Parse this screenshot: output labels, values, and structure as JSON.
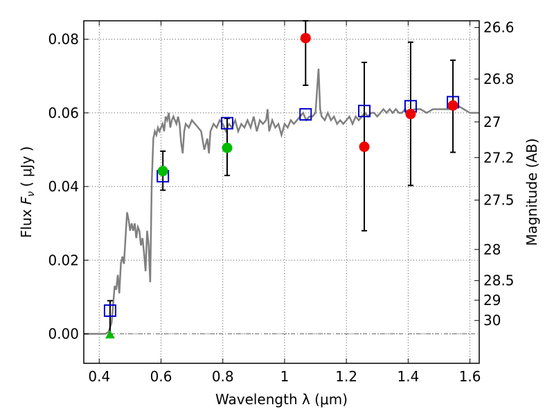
{
  "chart_data": {
    "type": "scatter",
    "xlabel": "Wavelength  λ (μm)",
    "ylabel": "Flux  Fν  ( μJy )",
    "ylabel_parts": {
      "prefix": "Flux  ",
      "symbol": "F",
      "subscript": "ν",
      "suffix": "  ( μJy )"
    },
    "y2label": "Magnitude (AB)",
    "xlim": [
      0.35,
      1.63
    ],
    "ylim": [
      -0.008,
      0.085
    ],
    "grid": true,
    "x_ticks": [
      {
        "value": 0.4,
        "label": "0.4"
      },
      {
        "value": 0.6,
        "label": "0.6"
      },
      {
        "value": 0.8,
        "label": "0.8"
      },
      {
        "value": 1.0,
        "label": "1"
      },
      {
        "value": 1.2,
        "label": "1.2"
      },
      {
        "value": 1.4,
        "label": "1.4"
      },
      {
        "value": 1.6,
        "label": "1.6"
      }
    ],
    "y_ticks": [
      {
        "value": 0.0,
        "label": "0.00"
      },
      {
        "value": 0.02,
        "label": "0.02"
      },
      {
        "value": 0.04,
        "label": "0.04"
      },
      {
        "value": 0.06,
        "label": "0.06"
      },
      {
        "value": 0.08,
        "label": "0.08"
      }
    ],
    "magnitude_ticks": [
      {
        "value": 26.6,
        "label": "26.6"
      },
      {
        "value": 26.8,
        "label": "26.8"
      },
      {
        "value": 27.0,
        "label": "27"
      },
      {
        "value": 27.2,
        "label": "27.2"
      },
      {
        "value": 27.5,
        "label": "27.5"
      },
      {
        "value": 28.0,
        "label": "28"
      },
      {
        "value": 28.5,
        "label": "28.5"
      },
      {
        "value": 29.0,
        "label": "29"
      },
      {
        "value": 30.0,
        "label": "30"
      }
    ],
    "magnitude_zero_point": 23.9,
    "colors": {
      "spectrum": "#808080",
      "model_box": "#0000cc",
      "green_point": "#00bb00",
      "red_point": "#ee0000",
      "error_bar": "#000000",
      "zero_line": "#666666",
      "grid": "#555555"
    },
    "series": [
      {
        "kind": "line",
        "points": [
          [
            0.35,
            0.0
          ],
          [
            0.42,
            0.0
          ],
          [
            0.43,
            0.0005
          ],
          [
            0.44,
            0.003
          ],
          [
            0.445,
            0.008
          ],
          [
            0.45,
            0.013
          ],
          [
            0.455,
            0.012
          ],
          [
            0.46,
            0.016
          ],
          [
            0.465,
            0.011
          ],
          [
            0.47,
            0.019
          ],
          [
            0.475,
            0.021
          ],
          [
            0.48,
            0.019
          ],
          [
            0.485,
            0.026
          ],
          [
            0.49,
            0.033
          ],
          [
            0.495,
            0.031
          ],
          [
            0.5,
            0.028
          ],
          [
            0.505,
            0.03
          ],
          [
            0.51,
            0.028
          ],
          [
            0.515,
            0.03
          ],
          [
            0.52,
            0.026
          ],
          [
            0.525,
            0.029
          ],
          [
            0.53,
            0.028
          ],
          [
            0.535,
            0.024
          ],
          [
            0.54,
            0.026
          ],
          [
            0.545,
            0.022
          ],
          [
            0.55,
            0.017
          ],
          [
            0.555,
            0.028
          ],
          [
            0.56,
            0.024
          ],
          [
            0.565,
            0.014
          ],
          [
            0.57,
            0.041
          ],
          [
            0.575,
            0.053
          ],
          [
            0.58,
            0.055
          ],
          [
            0.585,
            0.054
          ],
          [
            0.59,
            0.056
          ],
          [
            0.595,
            0.055
          ],
          [
            0.6,
            0.056
          ],
          [
            0.605,
            0.057
          ],
          [
            0.61,
            0.055
          ],
          [
            0.615,
            0.059
          ],
          [
            0.62,
            0.058
          ],
          [
            0.625,
            0.06
          ],
          [
            0.63,
            0.056
          ],
          [
            0.635,
            0.058
          ],
          [
            0.64,
            0.059
          ],
          [
            0.645,
            0.058
          ],
          [
            0.65,
            0.057
          ],
          [
            0.655,
            0.059
          ],
          [
            0.66,
            0.057
          ],
          [
            0.665,
            0.052
          ],
          [
            0.67,
            0.049
          ],
          [
            0.675,
            0.055
          ],
          [
            0.68,
            0.057
          ],
          [
            0.69,
            0.056
          ],
          [
            0.7,
            0.058
          ],
          [
            0.71,
            0.057
          ],
          [
            0.72,
            0.056
          ],
          [
            0.73,
            0.055
          ],
          [
            0.74,
            0.05
          ],
          [
            0.75,
            0.053
          ],
          [
            0.755,
            0.049
          ],
          [
            0.76,
            0.055
          ],
          [
            0.77,
            0.057
          ],
          [
            0.78,
            0.056
          ],
          [
            0.79,
            0.058
          ],
          [
            0.8,
            0.057
          ],
          [
            0.81,
            0.055
          ],
          [
            0.82,
            0.057
          ],
          [
            0.83,
            0.056
          ],
          [
            0.84,
            0.058
          ],
          [
            0.85,
            0.055
          ],
          [
            0.86,
            0.057
          ],
          [
            0.87,
            0.056
          ],
          [
            0.88,
            0.058
          ],
          [
            0.89,
            0.056
          ],
          [
            0.9,
            0.059
          ],
          [
            0.91,
            0.055
          ],
          [
            0.92,
            0.058
          ],
          [
            0.93,
            0.057
          ],
          [
            0.94,
            0.058
          ],
          [
            0.945,
            0.061
          ],
          [
            0.95,
            0.055
          ],
          [
            0.96,
            0.058
          ],
          [
            0.97,
            0.056
          ],
          [
            0.98,
            0.057
          ],
          [
            0.99,
            0.054
          ],
          [
            1.0,
            0.057
          ],
          [
            1.01,
            0.056
          ],
          [
            1.02,
            0.058
          ],
          [
            1.03,
            0.057
          ],
          [
            1.04,
            0.058
          ],
          [
            1.05,
            0.059
          ],
          [
            1.06,
            0.06
          ],
          [
            1.07,
            0.058
          ],
          [
            1.08,
            0.059
          ],
          [
            1.09,
            0.059
          ],
          [
            1.1,
            0.06
          ],
          [
            1.105,
            0.066
          ],
          [
            1.11,
            0.072
          ],
          [
            1.115,
            0.061
          ],
          [
            1.12,
            0.059
          ],
          [
            1.13,
            0.058
          ],
          [
            1.14,
            0.06
          ],
          [
            1.15,
            0.058
          ],
          [
            1.16,
            0.059
          ],
          [
            1.17,
            0.057
          ],
          [
            1.18,
            0.058
          ],
          [
            1.19,
            0.057
          ],
          [
            1.2,
            0.058
          ],
          [
            1.21,
            0.059
          ],
          [
            1.22,
            0.057
          ],
          [
            1.23,
            0.059
          ],
          [
            1.24,
            0.058
          ],
          [
            1.25,
            0.059
          ],
          [
            1.26,
            0.06
          ],
          [
            1.27,
            0.059
          ],
          [
            1.28,
            0.06
          ],
          [
            1.29,
            0.06
          ],
          [
            1.3,
            0.059
          ],
          [
            1.31,
            0.06
          ],
          [
            1.32,
            0.061
          ],
          [
            1.33,
            0.06
          ],
          [
            1.34,
            0.061
          ],
          [
            1.35,
            0.06
          ],
          [
            1.36,
            0.061
          ],
          [
            1.37,
            0.06
          ],
          [
            1.38,
            0.06
          ],
          [
            1.39,
            0.061
          ],
          [
            1.4,
            0.06
          ],
          [
            1.42,
            0.061
          ],
          [
            1.44,
            0.061
          ],
          [
            1.46,
            0.06
          ],
          [
            1.48,
            0.061
          ],
          [
            1.5,
            0.061
          ],
          [
            1.52,
            0.061
          ],
          [
            1.54,
            0.061
          ],
          [
            1.56,
            0.062
          ],
          [
            1.58,
            0.061
          ],
          [
            1.6,
            0.06
          ],
          [
            1.61,
            0.06
          ],
          [
            1.63,
            0.06
          ]
        ]
      },
      {
        "kind": "model_boxes",
        "points": [
          {
            "x": 0.435,
            "y": 0.0063
          },
          {
            "x": 0.606,
            "y": 0.0428
          },
          {
            "x": 0.814,
            "y": 0.0572
          },
          {
            "x": 1.068,
            "y": 0.0596
          },
          {
            "x": 1.258,
            "y": 0.0605
          },
          {
            "x": 1.408,
            "y": 0.0618
          },
          {
            "x": 1.545,
            "y": 0.0629
          }
        ]
      },
      {
        "kind": "green_points",
        "points": [
          {
            "x": 0.606,
            "y": 0.0442,
            "ylo": 0.039,
            "yhi": 0.0496
          },
          {
            "x": 0.814,
            "y": 0.0505,
            "ylo": 0.043,
            "yhi": 0.0585
          }
        ]
      },
      {
        "kind": "green_triangles",
        "points": [
          {
            "x": 0.435,
            "y": -0.0003,
            "yhi": 0.009
          }
        ]
      },
      {
        "kind": "red_points",
        "points": [
          {
            "x": 1.068,
            "y": 0.0803,
            "ylo": 0.0675,
            "yhi": 0.085
          },
          {
            "x": 1.258,
            "y": 0.0508,
            "ylo": 0.028,
            "yhi": 0.0737
          },
          {
            "x": 1.408,
            "y": 0.0597,
            "ylo": 0.0403,
            "yhi": 0.0792
          },
          {
            "x": 1.545,
            "y": 0.062,
            "ylo": 0.0493,
            "yhi": 0.0743
          }
        ]
      }
    ]
  }
}
